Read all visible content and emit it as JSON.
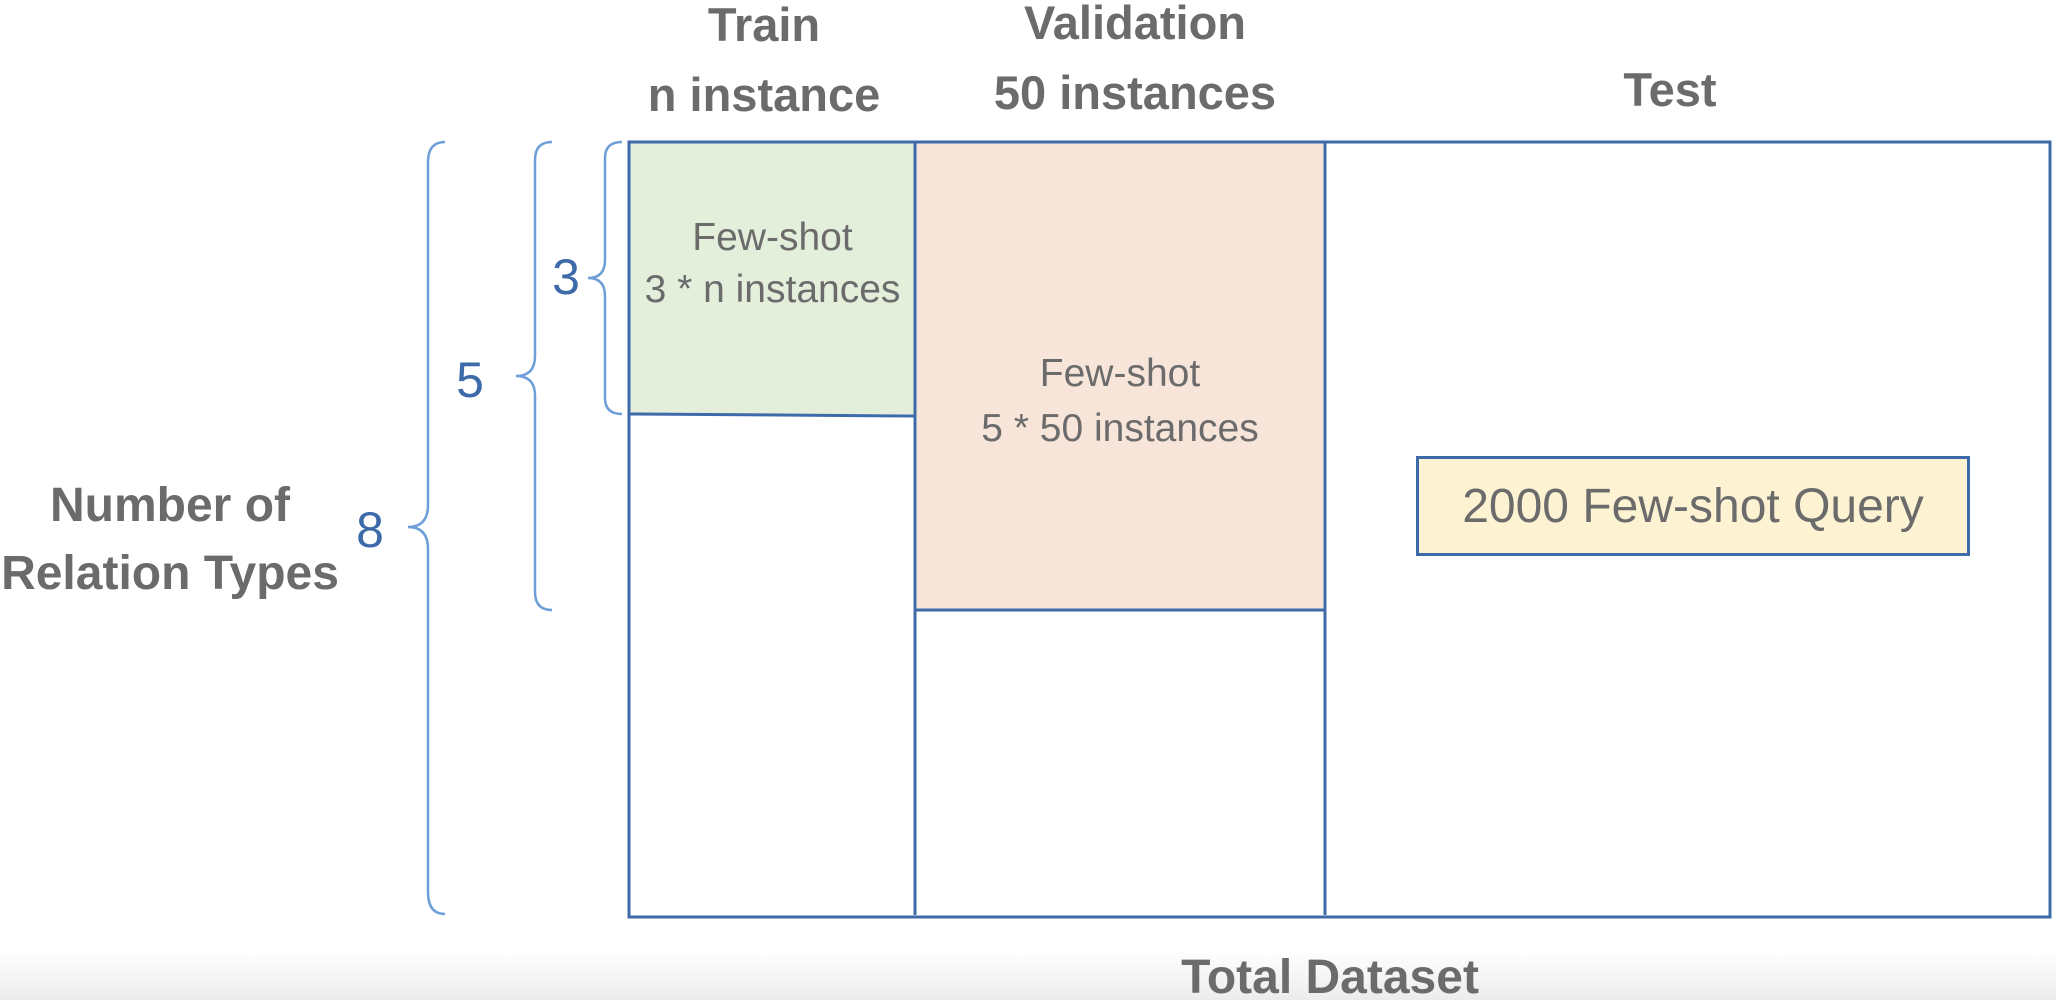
{
  "columns": {
    "train": {
      "line1": "Train",
      "line2": "n instance"
    },
    "validation": {
      "line1": "Validation",
      "line2": "50 instances"
    },
    "test": {
      "line1": "Test"
    }
  },
  "y_axis": {
    "line1": "Number of",
    "line2": "Relation Types"
  },
  "relation_counts": {
    "total": "8",
    "validation": "5",
    "train": "3"
  },
  "cells": {
    "train_fewshot": {
      "line1": "Few-shot",
      "line2": "3 * n instances"
    },
    "validation_fewshot": {
      "line1": "Few-shot",
      "line2": "5 * 50 instances"
    },
    "test_query": {
      "label": "2000 Few-shot Query"
    }
  },
  "footer": {
    "title": "Total Dataset"
  },
  "colors": {
    "border": "#3d6aa8",
    "brace": "#6f9fd8",
    "train_fill": "#e3efdb",
    "validation_fill": "#f7e5da",
    "query_fill": "#fdf3d2",
    "text": "#6b6b6b",
    "count_text": "#3d6aa8"
  }
}
